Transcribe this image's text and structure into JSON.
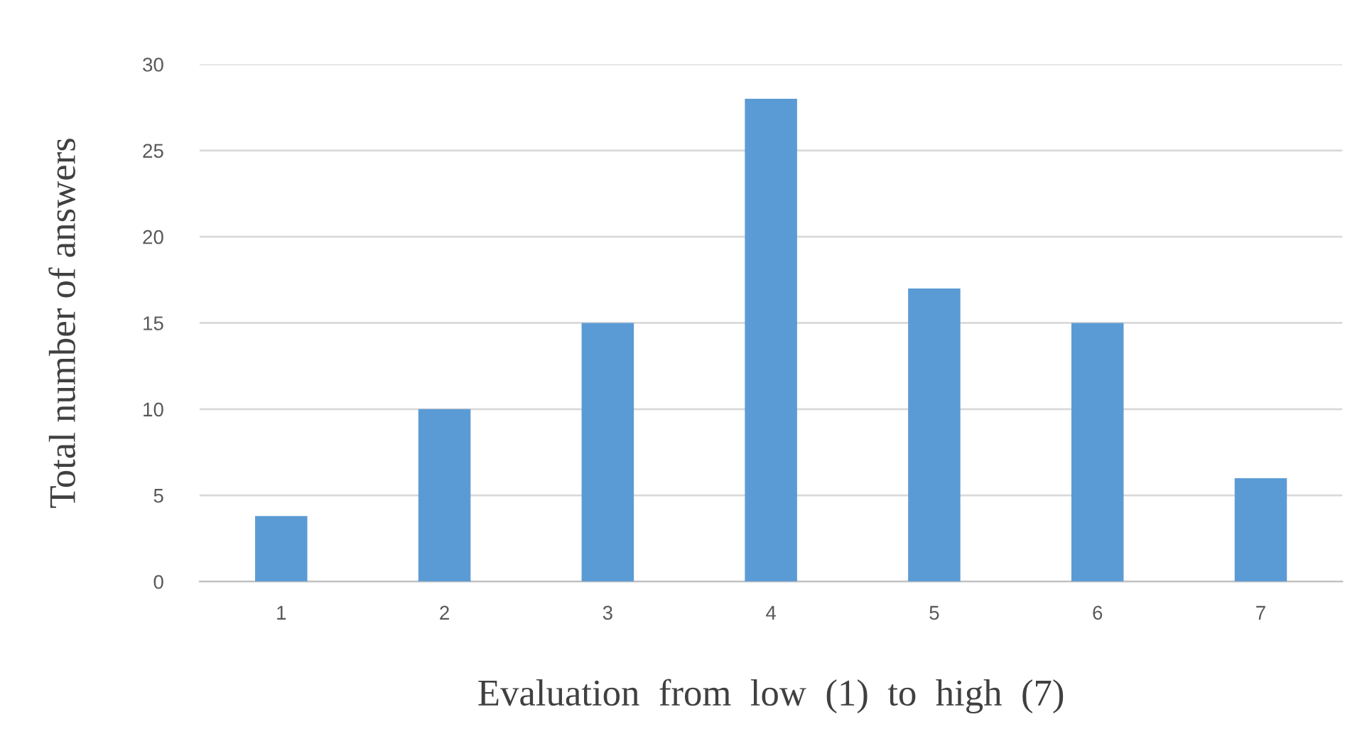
{
  "chart_data": {
    "type": "bar",
    "xlabel": "Evaluation  from  low  (1)  to  high  (7)",
    "ylabel": "Total number of answers",
    "categories": [
      "1",
      "2",
      "3",
      "4",
      "5",
      "6",
      "7"
    ],
    "values": [
      3.8,
      10,
      15,
      28,
      17,
      15,
      6
    ],
    "color": "#5b9bd5",
    "ylim": [
      0,
      30
    ],
    "yticks": [
      0,
      5,
      10,
      15,
      20,
      25,
      30
    ],
    "grid": "y"
  }
}
